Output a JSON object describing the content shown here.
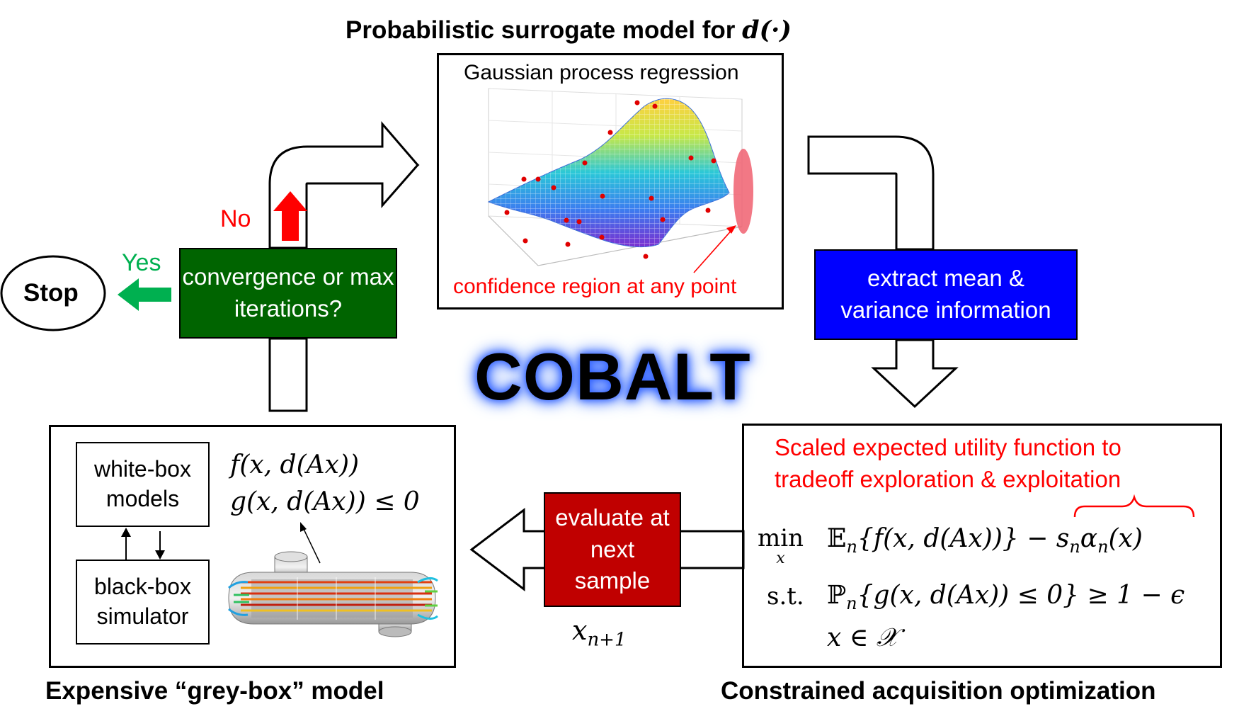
{
  "surrogate": {
    "title_text": "Probabilistic surrogate model for ",
    "title_math": "d(·)",
    "panel_title": "Gaussian process regression",
    "annotation": "confidence region at any point"
  },
  "convergence": {
    "question": "convergence or max iterations?",
    "no_label": "No",
    "yes_label": "Yes",
    "stop_label": "Stop"
  },
  "extract": {
    "label": "extract mean & variance information"
  },
  "center_title": "COBALT",
  "acquisition": {
    "annotation": "Scaled expected utility function to tradeoff exploration & exploitation",
    "min_label": "min",
    "min_sub": "x",
    "objective_E": "𝔼",
    "objective_sub": "n",
    "objective": "{f(x, d(Ax))} − ",
    "scaling": "s",
    "scaling_sub": "n",
    "alpha": "α",
    "alpha_sub": "n",
    "alpha_arg": "(x)",
    "st_label": "s.t.",
    "constraint_P": "ℙ",
    "constraint_sub": "n",
    "constraint": "{g(x, d(Ax)) ≤ 0} ≥ 1 − ϵ",
    "domain_constraint": "x ∈ 𝒳",
    "title": "Constrained acquisition optimization"
  },
  "evaluate": {
    "label": "evaluate at next sample",
    "sample_var": "x",
    "sample_sub": "n+1"
  },
  "greybox": {
    "white_box": "white-box models",
    "black_box": "black-box simulator",
    "objective_fn": "f(x, d(Ax))",
    "constraint_fn": "g(x, d(Ax)) ≤ 0",
    "title": "Expensive “grey-box” model"
  },
  "colors": {
    "green_box": "#006400",
    "blue_box": "#0000ff",
    "red_box": "#c00000",
    "annotation_red": "#ff0000",
    "yes_green": "#00b050",
    "no_red": "#ff0000"
  }
}
